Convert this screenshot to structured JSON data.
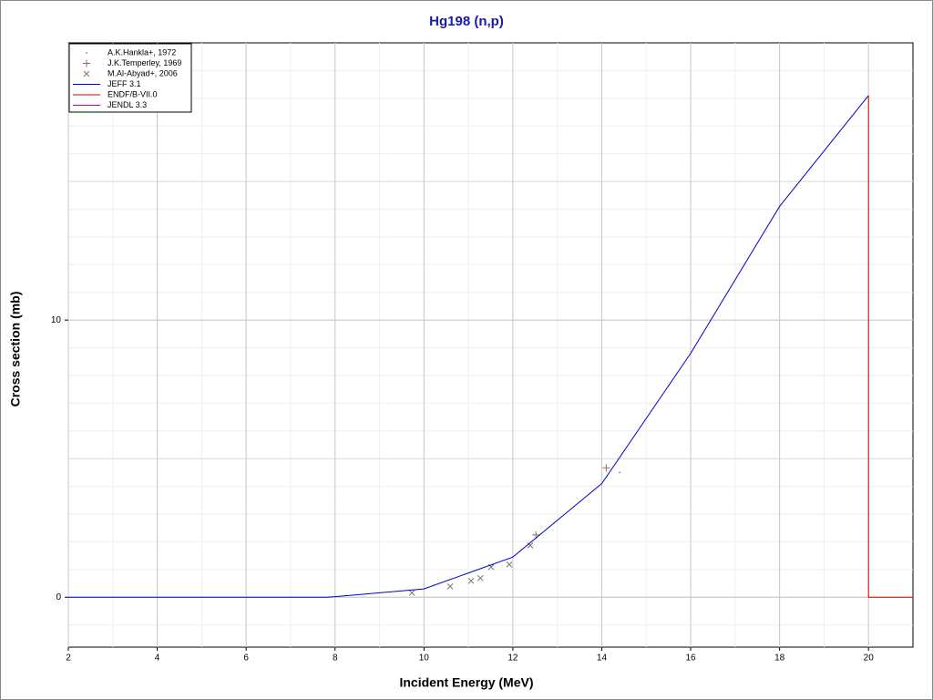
{
  "chart_data": {
    "type": "line",
    "title": "Hg198 (n,p)",
    "x_label": "Incident Energy (MeV)",
    "y_label": "Cross section (mb)",
    "xlim": [
      2,
      21
    ],
    "ylim": [
      -1.8,
      20
    ],
    "xticks": [
      2,
      4,
      6,
      8,
      10,
      12,
      14,
      16,
      18,
      20
    ],
    "yticks": [
      0,
      10
    ],
    "grid": true,
    "legend": "upper left",
    "series": [
      {
        "name": "A.K.Hankla+, 1972",
        "color": "#999999",
        "marker": "dot",
        "x": [
          14.4
        ],
        "values": [
          4.5
        ]
      },
      {
        "name": "J.K.Temperley, 1969",
        "color": "#996666",
        "marker": "plus",
        "x": [
          14.1,
          12.52
        ],
        "values": [
          4.67,
          2.25
        ]
      },
      {
        "name": "M.Al-Abyad+, 2006",
        "color": "#777777",
        "marker": "cross",
        "x": [
          9.73,
          10.59,
          11.06,
          11.27,
          11.51,
          11.92,
          12.39
        ],
        "values": [
          0.16,
          0.39,
          0.59,
          0.69,
          1.09,
          1.18,
          1.87
        ]
      },
      {
        "name": "JEFF 3.1",
        "color": "#0000cc",
        "marker": "line",
        "x": [
          2,
          7.8,
          8,
          10,
          12,
          14,
          16,
          18,
          20
        ],
        "values": [
          0,
          0,
          0.02,
          0.3,
          1.45,
          4.1,
          8.8,
          14.1,
          18.1
        ]
      },
      {
        "name": "ENDF/B-VII.0",
        "color": "#dd0000",
        "marker": "line",
        "x": [
          20,
          20,
          21
        ],
        "values": [
          18.1,
          0,
          0
        ]
      },
      {
        "name": "JENDL 3.3",
        "color": "#cc00cc",
        "marker": "line",
        "x": [],
        "values": []
      }
    ]
  }
}
